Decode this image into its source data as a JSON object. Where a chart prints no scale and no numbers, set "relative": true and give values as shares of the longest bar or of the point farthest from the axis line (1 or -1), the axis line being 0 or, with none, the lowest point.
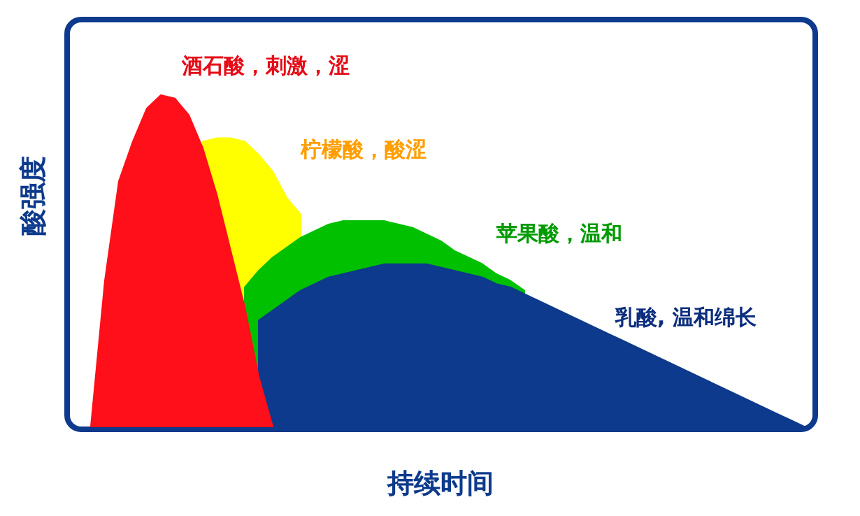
{
  "chart_data": {
    "type": "area",
    "relative": true,
    "xlabel": "持续时间",
    "ylabel": "酸强度",
    "legend": false,
    "categories": [
      null,
      null,
      null,
      null,
      null,
      null,
      null,
      null,
      null,
      null,
      null,
      null,
      null,
      null,
      null,
      null,
      null,
      null,
      null,
      null,
      null,
      null,
      null,
      null,
      null,
      null,
      null,
      null,
      null,
      null,
      null,
      null,
      null,
      null,
      null,
      null,
      null,
      null,
      null,
      null,
      null,
      null,
      null,
      null,
      null,
      null,
      null,
      null,
      null,
      null,
      null,
      null
    ],
    "series": [
      {
        "name": "酒石酸，刺激，涩",
        "color": "#fe0f1a",
        "values": [
          0,
          0.44,
          0.74,
          0.86,
          0.96,
          1.0,
          0.99,
          0.94,
          0.84,
          0.7,
          0.53,
          0.36,
          0.15,
          0,
          null,
          null,
          null,
          null,
          null,
          null,
          null,
          null,
          null,
          null,
          null,
          null,
          null,
          null,
          null,
          null,
          null,
          null,
          null,
          null,
          null,
          null,
          null,
          null,
          null,
          null,
          null,
          null,
          null,
          null,
          null,
          null,
          null,
          null,
          null,
          null,
          null,
          null
        ]
      },
      {
        "name": "乳酸, 温和绵长",
        "color": "#0d3a8c",
        "values": [
          null,
          null,
          null,
          null,
          null,
          null,
          null,
          null,
          null,
          null,
          null,
          null,
          0.32,
          0.35,
          0.38,
          0.41,
          0.43,
          0.45,
          0.46,
          0.47,
          0.48,
          0.49,
          0.49,
          0.49,
          0.49,
          0.48,
          0.47,
          0.46,
          0.45,
          0.43,
          0.42,
          0.4,
          0.38,
          0.36,
          0.34,
          0.32,
          0.3,
          0.28,
          0.26,
          0.24,
          0.22,
          0.2,
          0.18,
          0.16,
          0.14,
          0.12,
          0.1,
          0.08,
          0.06,
          0.04,
          0.02,
          0
        ]
      },
      {
        "name": "苹果酸，温和",
        "color": "#00c000",
        "values": [
          null,
          null,
          null,
          null,
          null,
          null,
          null,
          null,
          null,
          null,
          null,
          0.42,
          0.47,
          0.51,
          0.54,
          0.57,
          0.59,
          0.61,
          0.62,
          0.62,
          0.62,
          0.62,
          0.61,
          0.6,
          0.58,
          0.56,
          0.53,
          0.51,
          0.49,
          0.46,
          0.44,
          0.41,
          null,
          null,
          null,
          null,
          null,
          null,
          null,
          null,
          null,
          null,
          null,
          null,
          null,
          null,
          null,
          null,
          null,
          null,
          null,
          null
        ]
      },
      {
        "name": "柠檬酸，酸涩",
        "color": "#ffff00",
        "values": [
          null,
          null,
          null,
          null,
          null,
          null,
          null,
          null,
          0.86,
          0.87,
          0.87,
          0.86,
          0.82,
          0.77,
          0.69,
          0.64,
          null,
          null,
          null,
          null,
          null,
          null,
          null,
          null,
          null,
          null,
          null,
          null,
          null,
          null,
          null,
          null,
          null,
          null,
          null,
          null,
          null,
          null,
          null,
          null,
          null,
          null,
          null,
          null,
          null,
          null,
          null,
          null,
          null,
          null,
          null,
          null
        ]
      }
    ]
  }
}
